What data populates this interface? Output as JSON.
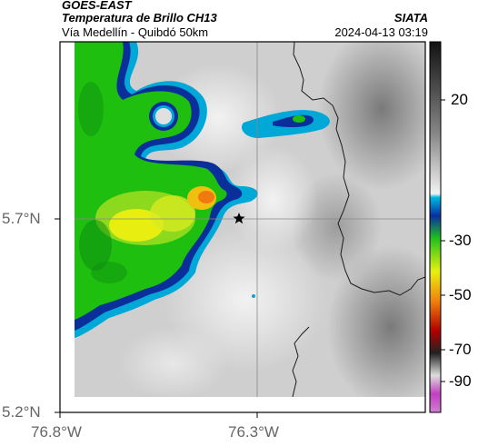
{
  "header": {
    "title": "GOES-EAST",
    "subtitle": "Temperatura de Brillo CH13",
    "source": "SIATA",
    "region": "Vía Medellín - Quibdó 50km",
    "timestamp": "2024-04-13 03:19"
  },
  "map": {
    "lat_ticks": [
      "5.7°N",
      "5.2°N"
    ],
    "lon_ticks": [
      "76.8°W",
      "76.3°W"
    ],
    "marker": "star-marker",
    "colors": {
      "cold_cloud_green": "#1fbf10",
      "cold_cloud_yellow": "#e8ef10",
      "cold_cloud_orange": "#f07a10",
      "cloud_edge_blue": "#0a3ea8",
      "cloud_edge_cyan": "#00a8d8",
      "warm_gray": "#8a8a8a",
      "light_gray": "#e2e2e2",
      "border_line": "#1a1a1a",
      "gridline": "#888888"
    }
  },
  "colorbar": {
    "ticks": [
      "20",
      "-30",
      "-50",
      "-70",
      "-90"
    ]
  }
}
